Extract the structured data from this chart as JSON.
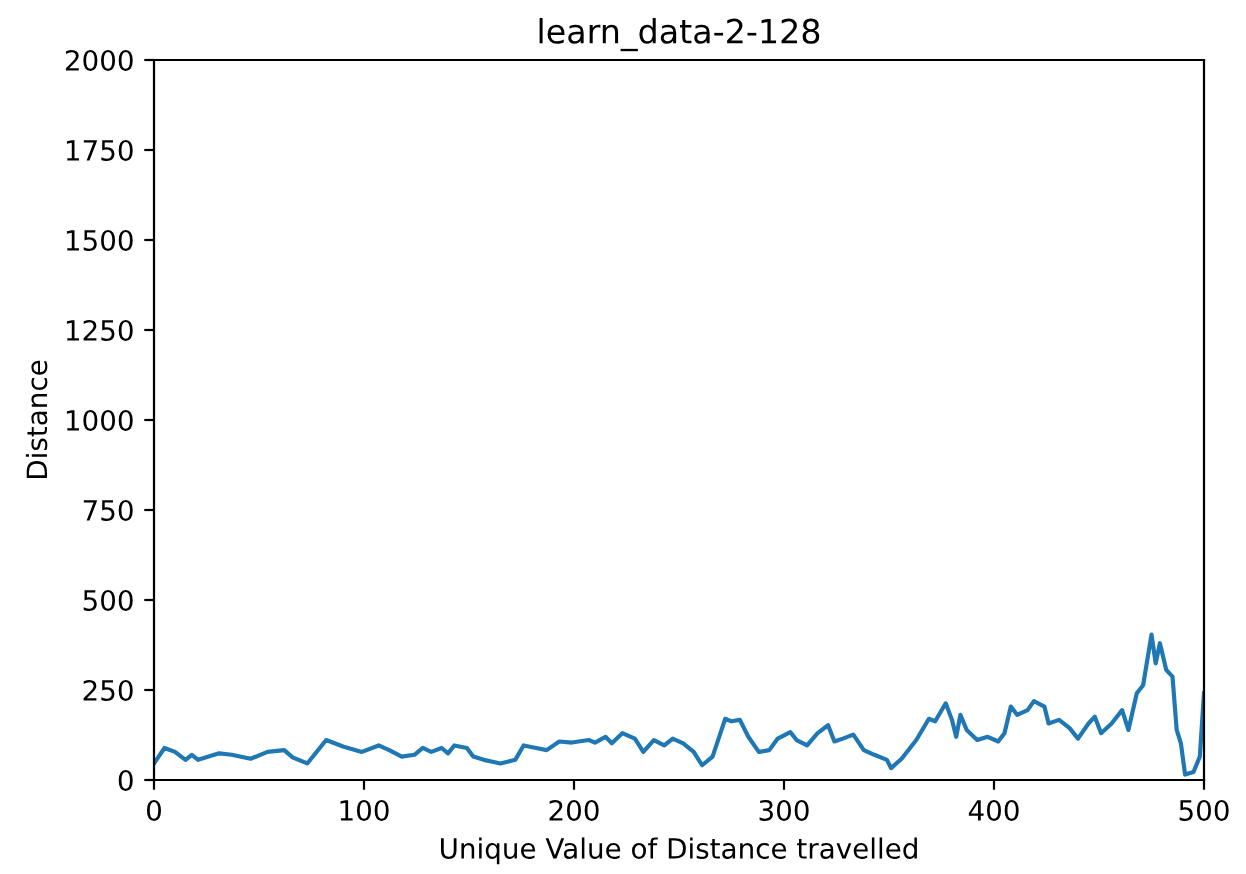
{
  "chart_data": {
    "type": "line",
    "title": "learn_data-2-128",
    "xlabel": "Unique Value of Distance travelled",
    "ylabel": "Distance",
    "xlim": [
      0,
      500
    ],
    "ylim": [
      0,
      2000
    ],
    "xticks": [
      0,
      100,
      200,
      300,
      400,
      500
    ],
    "yticks": [
      0,
      250,
      500,
      750,
      1000,
      1250,
      1500,
      1750,
      2000
    ],
    "grid": false,
    "series": [
      {
        "color": "#1f77b4",
        "x": [
          0,
          5,
          10,
          15,
          18,
          21,
          31,
          37,
          46,
          54,
          62,
          66,
          73,
          82,
          90,
          99,
          107,
          112,
          118,
          124,
          128,
          132,
          137,
          140,
          143,
          149,
          152,
          157,
          165,
          172,
          176,
          182,
          187,
          193,
          199,
          207,
          210,
          215,
          218,
          223,
          229,
          233,
          238,
          243,
          247,
          252,
          257,
          261,
          266,
          272,
          275,
          279,
          283,
          288,
          293,
          297,
          303,
          306,
          311,
          316,
          321,
          324,
          328,
          333,
          338,
          343,
          349,
          351,
          356,
          363,
          369,
          372,
          377,
          380,
          382,
          384,
          387,
          392,
          397,
          402,
          405,
          408,
          411,
          416,
          419,
          424,
          426,
          431,
          436,
          440,
          445,
          448,
          451,
          456,
          461,
          464,
          468,
          471,
          475,
          477,
          479,
          482,
          485,
          487,
          489,
          491,
          495,
          498,
          500
        ],
        "values": [
          46,
          89,
          78,
          56,
          70,
          56,
          74,
          70,
          59,
          78,
          83,
          63,
          46,
          111,
          93,
          78,
          96,
          83,
          65,
          70,
          89,
          78,
          89,
          74,
          96,
          89,
          65,
          56,
          46,
          56,
          96,
          89,
          83,
          107,
          104,
          111,
          104,
          120,
          102,
          130,
          115,
          78,
          111,
          96,
          115,
          102,
          78,
          41,
          65,
          170,
          163,
          167,
          120,
          78,
          83,
          115,
          133,
          111,
          96,
          130,
          152,
          107,
          115,
          126,
          83,
          70,
          56,
          33,
          59,
          111,
          170,
          163,
          213,
          167,
          120,
          181,
          139,
          111,
          120,
          107,
          130,
          204,
          181,
          194,
          219,
          204,
          157,
          167,
          144,
          115,
          157,
          176,
          130,
          157,
          194,
          139,
          241,
          263,
          404,
          324,
          380,
          306,
          287,
          139,
          102,
          15,
          22,
          65,
          241
        ]
      }
    ]
  }
}
